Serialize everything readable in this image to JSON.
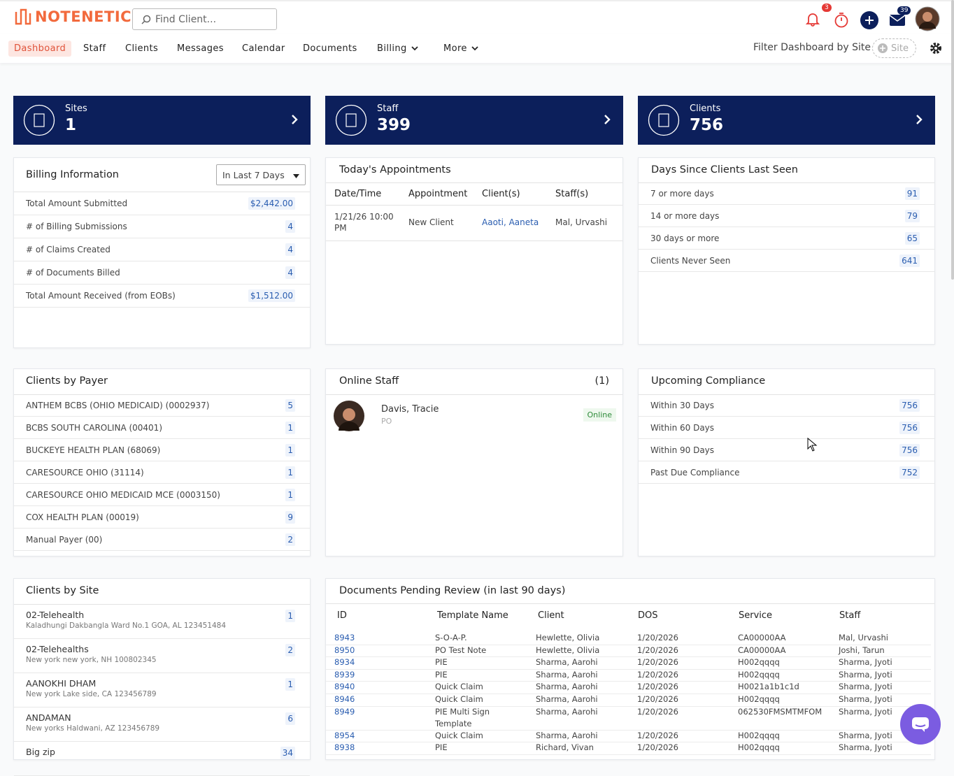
{
  "header": {
    "logo": "NOTENETIC",
    "search_placeholder": "Find Client...",
    "notifications": 3,
    "messages": 39
  },
  "nav": {
    "items": [
      "Dashboard",
      "Staff",
      "Clients",
      "Messages",
      "Calendar",
      "Documents",
      "Billing",
      "More"
    ],
    "filter_label": "Filter Dashboard by Site",
    "site_chip": "Site"
  },
  "summary": [
    {
      "label": "Sites",
      "value": 1
    },
    {
      "label": "Staff",
      "value": 399
    },
    {
      "label": "Clients",
      "value": 756
    }
  ],
  "billing": {
    "title": "Billing Information",
    "range": "In Last 7 Days",
    "rows": [
      [
        "Total Amount Submitted",
        "$2,442.00"
      ],
      [
        "# of Billing Submissions",
        4
      ],
      [
        "# of Claims Created",
        4
      ],
      [
        "# of Documents Billed",
        4
      ],
      [
        "Total Amount Received (from EOBs)",
        "$1,512.00"
      ]
    ]
  },
  "appointments": {
    "title": "Today's Appointments",
    "columns": [
      "Date/Time",
      "Appointment",
      "Client(s)",
      "Staff(s)"
    ],
    "rows": [
      [
        "1/21/26 10:00 PM",
        "New Client",
        "Aaoti, Aaneta",
        "Mal, Urvashi"
      ]
    ]
  },
  "days_since": {
    "title": "Days Since Clients Last Seen",
    "rows": [
      [
        "7 or more days",
        91
      ],
      [
        "14 or more days",
        79
      ],
      [
        "30 days or more",
        65
      ],
      [
        "Clients Never Seen",
        641
      ]
    ]
  },
  "clients_by_payer": {
    "title": "Clients by Payer",
    "rows": [
      [
        "ANTHEM BCBS (OHIO MEDICAID) (0002937)",
        5
      ],
      [
        "BCBS SOUTH CAROLINA (00401)",
        1
      ],
      [
        "BUCKEYE HEALTH PLAN (68069)",
        1
      ],
      [
        "CARESOURCE OHIO (31114)",
        1
      ],
      [
        "CARESOURCE OHIO MEDICAID MCE (0003150)",
        1
      ],
      [
        "COX HEALTH PLAN (00019)",
        9
      ],
      [
        "Manual Payer (00)",
        2
      ]
    ]
  },
  "online_staff": {
    "title": "Online Staff",
    "count": "(1)",
    "staff": [
      {
        "name": "Davis, Tracie",
        "role": "PO",
        "status": "Online"
      }
    ]
  },
  "upcoming_compliance": {
    "title": "Upcoming Compliance",
    "rows": [
      [
        "Within 30 Days",
        756
      ],
      [
        "Within 60 Days",
        756
      ],
      [
        "Within 90 Days",
        756
      ],
      [
        "Past Due Compliance",
        752
      ]
    ]
  },
  "clients_by_site": {
    "title": "Clients by Site",
    "rows": [
      {
        "name": "02-Telehealth",
        "address": "Kaladhungi Dakbangla Ward No.1 GOA, AL 123451484",
        "count": 1
      },
      {
        "name": "02-Telehealths",
        "address": "New york new york, NH 100802345",
        "count": 2
      },
      {
        "name": "AANOKHI DHAM",
        "address": "New york Lake side, CA 123456789",
        "count": 1
      },
      {
        "name": "ANDAMAN",
        "address": "New yorks Haldwani, AZ 123456789",
        "count": 6
      },
      {
        "name": "Big zip",
        "count": 34
      }
    ]
  },
  "documents_pending": {
    "title": "Documents Pending Review (in last 90 days)",
    "columns": [
      "ID",
      "Template Name",
      "Client",
      "DOS",
      "Service",
      "Staff"
    ],
    "rows": [
      [
        "8943",
        "S-O-A-P.",
        "Hewlette, Olivia",
        "1/20/2026",
        "CA00000AA",
        "Mal, Urvashi"
      ],
      [
        "8950",
        "PO Test Note",
        "Hewlette, Olivia",
        "1/20/2026",
        "CA00000AA",
        "Joshi, Tarun"
      ],
      [
        "8934",
        "PIE",
        "Sharma, Aarohi",
        "1/20/2026",
        "H002qqqq",
        "Sharma, Jyoti"
      ],
      [
        "8939",
        "PIE",
        "Sharma, Aarohi",
        "1/20/2026",
        "H002qqqq",
        "Sharma, Jyoti"
      ],
      [
        "8940",
        "Quick Claim",
        "Sharma, Aarohi",
        "1/20/2026",
        "H0021a1b1c1d",
        "Sharma, Jyoti"
      ],
      [
        "8946",
        "Quick Claim",
        "Sharma, Aarohi",
        "1/20/2026",
        "H002qqqq",
        "Sharma, Jyoti"
      ],
      [
        "8949",
        "PIE Multi Sign Template",
        "Sharma, Aarohi",
        "1/20/2026",
        "062530FMSMTMFOM",
        "Sharma, Jyoti"
      ],
      [
        "8954",
        "Quick Claim",
        "Sharma, Aarohi",
        "1/20/2026",
        "H002qqqq",
        "Sharma, Jyoti"
      ],
      [
        "8938",
        "PIE",
        "Richard, Vivan",
        "1/20/2026",
        "H002qqqq",
        "Sharma, Jyoti"
      ]
    ]
  }
}
